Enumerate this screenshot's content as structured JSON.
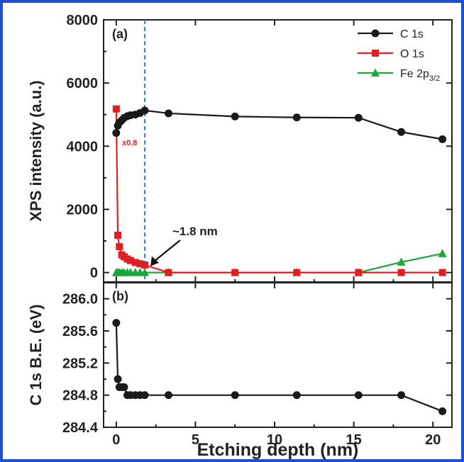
{
  "colors": {
    "frame": "#1a4fd6",
    "c1s": "#1a1a1a",
    "o1s": "#e02020",
    "fe2p": "#1aa83a",
    "vline": "#1e90d8"
  },
  "chart_data": [
    {
      "panel": "(a)",
      "type": "line",
      "xlabel": "Etching depth (nm)",
      "ylabel": "XPS intensity (a.u.)",
      "xlim": [
        -0.8,
        21.2
      ],
      "ylim": [
        -300,
        8000
      ],
      "yticks": [
        "0",
        "2000",
        "4000",
        "6000",
        "8000"
      ],
      "ytick_values": [
        0,
        2000,
        4000,
        6000,
        8000
      ],
      "legend_position": "top-right",
      "series": [
        {
          "name": "C 1s",
          "marker": "circle",
          "color": "#1a1a1a",
          "x": [
            0,
            0.1,
            0.2,
            0.35,
            0.5,
            0.7,
            0.9,
            1.2,
            1.5,
            1.8,
            3.3,
            7.5,
            11.4,
            15.3,
            18.0,
            20.6
          ],
          "y": [
            4420,
            4650,
            4750,
            4820,
            4900,
            4950,
            4980,
            5000,
            5050,
            5130,
            5040,
            4940,
            4910,
            4900,
            4450,
            4220
          ]
        },
        {
          "name": "O 1s",
          "marker": "square",
          "color": "#e02020",
          "x": [
            0,
            0.1,
            0.2,
            0.35,
            0.5,
            0.7,
            0.9,
            1.2,
            1.5,
            1.8,
            3.3,
            7.5,
            11.4,
            15.3,
            18.0,
            20.6
          ],
          "y": [
            5180,
            1180,
            820,
            560,
            500,
            430,
            380,
            320,
            280,
            240,
            0,
            0,
            0,
            0,
            0,
            0
          ]
        },
        {
          "name": "Fe 2p",
          "name_subscript": "3/2",
          "marker": "triangle",
          "color": "#1aa83a",
          "x": [
            0,
            0.1,
            0.2,
            0.35,
            0.5,
            0.7,
            0.9,
            1.2,
            1.5,
            1.8,
            3.3,
            7.5,
            11.4,
            15.3,
            18.0,
            20.6
          ],
          "y": [
            0,
            0,
            0,
            0,
            0,
            0,
            0,
            0,
            0,
            0,
            0,
            0,
            0,
            0,
            330,
            600
          ]
        }
      ],
      "annotations": {
        "depth_marker": "~1.8 nm",
        "depth_marker_x": 1.8,
        "o1s_scale": "x0.8"
      }
    },
    {
      "panel": "(b)",
      "type": "line",
      "ylabel": "C 1s B.E. (eV)",
      "xlabel": "Etching depth (nm)",
      "xticks": [
        "0",
        "5",
        "10",
        "15",
        "20"
      ],
      "xtick_values": [
        0,
        5,
        10,
        15,
        20
      ],
      "ylim": [
        284.4,
        286.2
      ],
      "yticks": [
        "284.4",
        "284.8",
        "285.2",
        "285.6",
        "286.0"
      ],
      "ytick_values": [
        284.4,
        284.8,
        285.2,
        285.6,
        286.0
      ],
      "series": [
        {
          "color": "#1a1a1a",
          "marker": "circle",
          "x": [
            0,
            0.1,
            0.2,
            0.35,
            0.5,
            0.7,
            0.9,
            1.2,
            1.5,
            1.8,
            3.3,
            7.5,
            11.4,
            15.3,
            18.0,
            20.6
          ],
          "y": [
            285.7,
            285.0,
            284.9,
            284.9,
            284.9,
            284.8,
            284.8,
            284.8,
            284.8,
            284.8,
            284.8,
            284.8,
            284.8,
            284.8,
            284.8,
            284.6
          ]
        }
      ]
    }
  ]
}
